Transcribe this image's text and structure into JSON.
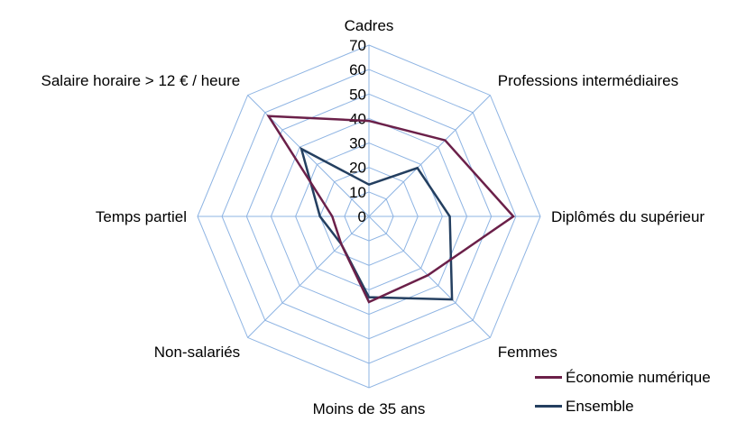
{
  "chart_data": {
    "type": "radar",
    "title": "",
    "axes": [
      "Cadres",
      "Professions intermédiaires",
      "Diplômés du supérieur",
      "Femmes",
      "Moins de 35 ans",
      "Non-salariés",
      "Temps partiel",
      "Salaire horaire > 12 € / heure"
    ],
    "ticks": [
      "0",
      "10",
      "20",
      "30",
      "40",
      "50",
      "60",
      "70"
    ],
    "rlim": [
      0,
      70
    ],
    "grid": true,
    "legend_position": "bottom-right",
    "series": [
      {
        "name": "Économie numérique",
        "color": "#6b2049",
        "values": [
          39,
          44,
          59,
          34,
          35,
          16,
          15,
          58
        ]
      },
      {
        "name": "Ensemble",
        "color": "#243f60",
        "values": [
          13,
          28,
          33,
          48,
          33,
          16,
          20,
          39
        ]
      }
    ]
  }
}
